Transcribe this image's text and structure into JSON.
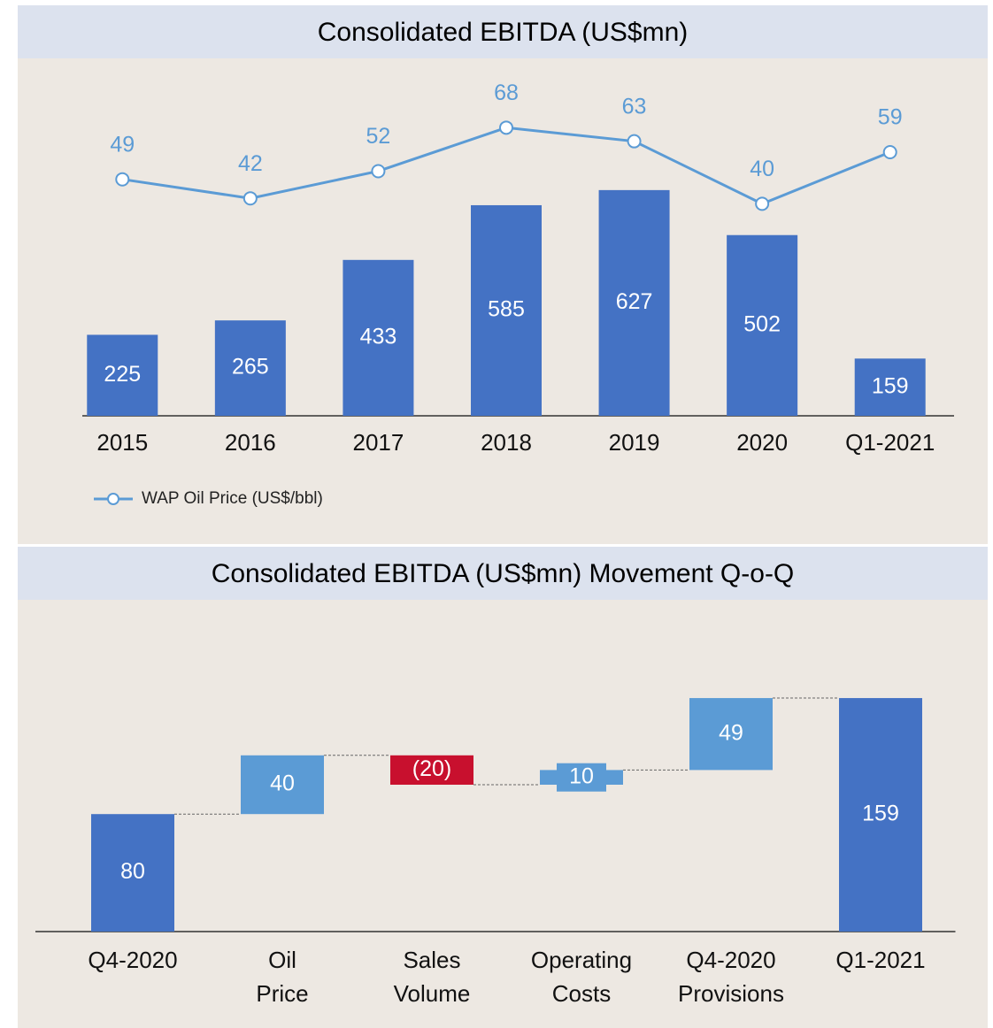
{
  "chart_data": [
    {
      "type": "bar",
      "title": "Consolidated EBITDA  (US$mn)",
      "categories": [
        "2015",
        "2016",
        "2017",
        "2018",
        "2019",
        "2020",
        "Q1-2021"
      ],
      "series": [
        {
          "color": "#4472c4",
          "values": [
            225,
            265,
            433,
            585,
            627,
            502,
            159
          ]
        },
        {
          "name": "WAP Oil Price (US$/bbl)",
          "type": "line",
          "axis": "y2",
          "color": "#5b9bd5",
          "values": [
            49,
            42,
            52,
            68,
            63,
            40,
            59
          ]
        }
      ],
      "ylim": [
        0,
        1042
      ],
      "y2lim": [
        -38,
        100
      ],
      "legend": "bottom-left"
    },
    {
      "type": "waterfall",
      "title": "Consolidated EBITDA (US$mn) Movement Q-o-Q",
      "categories": [
        [
          "Q4-2020"
        ],
        [
          "Oil",
          "Price"
        ],
        [
          "Sales",
          "Volume"
        ],
        [
          "Operating",
          "Costs"
        ],
        [
          "Q4-2020",
          "Provisions"
        ],
        [
          "Q1-2021"
        ]
      ],
      "values": [
        80,
        40,
        -20,
        10,
        49,
        159
      ],
      "value_labels": [
        "80",
        "40",
        "(20)",
        "10",
        "49",
        "159"
      ],
      "measure": [
        "absolute",
        "relative",
        "relative",
        "relative",
        "relative",
        "total"
      ],
      "colors": {
        "total": "#4472c4",
        "increase": "#5b9bd5",
        "decrease": "#c8102e"
      },
      "ylim": [
        0,
        200
      ]
    }
  ]
}
